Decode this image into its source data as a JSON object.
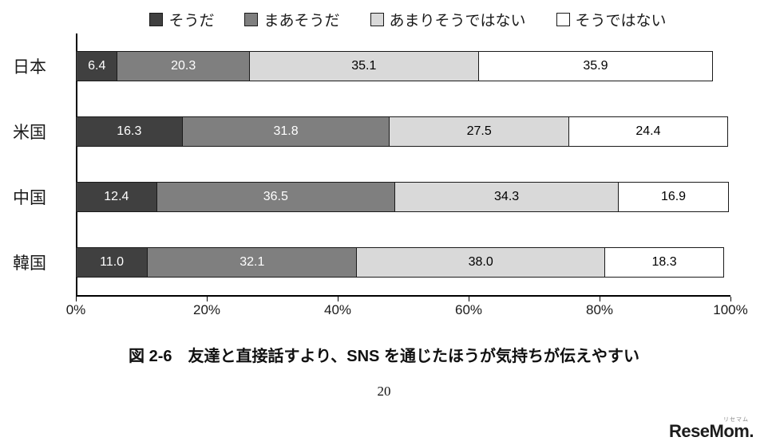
{
  "chart_data": {
    "type": "bar",
    "orientation": "horizontal",
    "stacked": true,
    "grid": false,
    "legend_position": "top",
    "categories": [
      "日本",
      "米国",
      "中国",
      "韓国"
    ],
    "series": [
      {
        "name": "そうだ",
        "color": "#404040",
        "text_color": "#ffffff",
        "values": [
          6.4,
          16.3,
          12.4,
          11.0
        ]
      },
      {
        "name": "まあそうだ",
        "color": "#7f7f7f",
        "text_color": "#ffffff",
        "values": [
          20.3,
          31.8,
          36.5,
          32.1
        ]
      },
      {
        "name": "あまりそうではない",
        "color": "#d9d9d9",
        "text_color": "#000000",
        "values": [
          35.1,
          27.5,
          34.3,
          38.0
        ]
      },
      {
        "name": "そうではない",
        "color": "#ffffff",
        "text_color": "#000000",
        "values": [
          35.9,
          24.4,
          16.9,
          18.3
        ]
      }
    ],
    "xlim": [
      0,
      100
    ],
    "x_ticks": [
      "0%",
      "20%",
      "40%",
      "60%",
      "80%",
      "100%"
    ]
  },
  "caption": "図 2-6　友達と直接話すより、SNS を通じたほうが気持ちが伝えやすい",
  "page_number": "20",
  "logo": {
    "text": "ReseMom.",
    "ruby": "リセマム"
  }
}
